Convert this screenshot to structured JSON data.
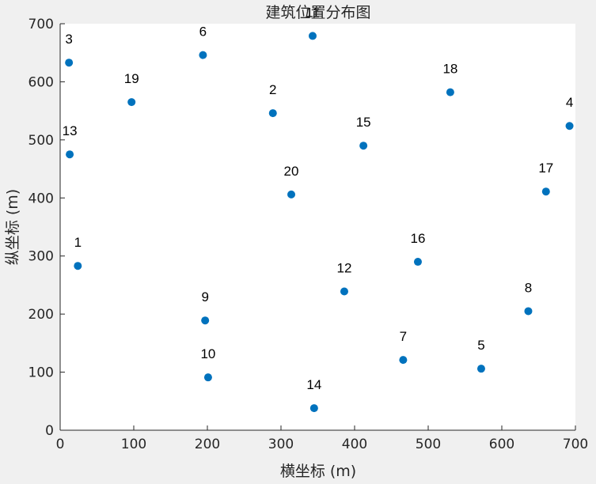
{
  "chart_data": {
    "type": "scatter",
    "title": "建筑位置分布图",
    "xlabel": "横坐标 (m)",
    "ylabel": "纵坐标 (m)",
    "xlim": [
      0,
      700
    ],
    "ylim": [
      0,
      700
    ],
    "xticks": [
      0,
      100,
      200,
      300,
      400,
      500,
      600,
      700
    ],
    "yticks": [
      0,
      100,
      200,
      300,
      400,
      500,
      600,
      700
    ],
    "grid": false,
    "marker_color": "#0072BD",
    "points": [
      {
        "label": "1",
        "x": 24,
        "y": 283
      },
      {
        "label": "2",
        "x": 289,
        "y": 546
      },
      {
        "label": "3",
        "x": 12,
        "y": 633
      },
      {
        "label": "4",
        "x": 692,
        "y": 524
      },
      {
        "label": "5",
        "x": 572,
        "y": 106
      },
      {
        "label": "6",
        "x": 194,
        "y": 646
      },
      {
        "label": "7",
        "x": 466,
        "y": 121
      },
      {
        "label": "8",
        "x": 636,
        "y": 205
      },
      {
        "label": "9",
        "x": 197,
        "y": 189
      },
      {
        "label": "10",
        "x": 201,
        "y": 91
      },
      {
        "label": "11",
        "x": 343,
        "y": 679
      },
      {
        "label": "12",
        "x": 386,
        "y": 239
      },
      {
        "label": "13",
        "x": 13,
        "y": 475
      },
      {
        "label": "14",
        "x": 345,
        "y": 38
      },
      {
        "label": "15",
        "x": 412,
        "y": 490
      },
      {
        "label": "16",
        "x": 486,
        "y": 290
      },
      {
        "label": "17",
        "x": 660,
        "y": 411
      },
      {
        "label": "18",
        "x": 530,
        "y": 582
      },
      {
        "label": "19",
        "x": 97,
        "y": 565
      },
      {
        "label": "20",
        "x": 314,
        "y": 406
      }
    ]
  }
}
